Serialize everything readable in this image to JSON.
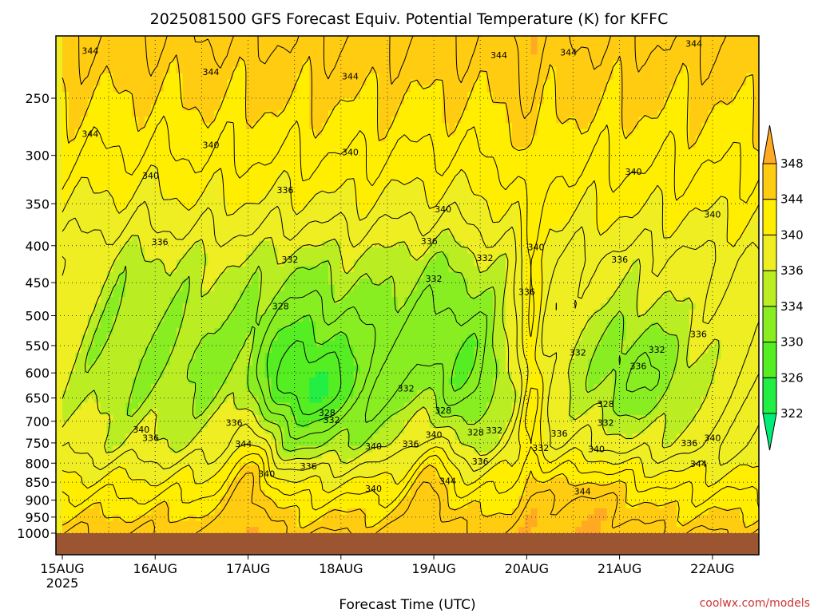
{
  "title": "2025081500 GFS Forecast Equiv. Potential Temperature (K) for KFFC",
  "credit": "coolwx.com/models",
  "chart_data": {
    "type": "contour",
    "title": "2025081500 GFS Forecast Equiv. Potential Temperature (K) for KFFC",
    "xlabel": "Forecast Time (UTC)",
    "ylabel": "",
    "y_axis_reversed": true,
    "ylim": [
      205,
      1000
    ],
    "y_ticks": [
      250,
      300,
      350,
      400,
      450,
      500,
      550,
      600,
      650,
      700,
      750,
      800,
      850,
      900,
      950,
      1000
    ],
    "x_ticks": [
      {
        "label": "15AUG",
        "sub": "2025",
        "day": 0
      },
      {
        "label": "16AUG",
        "sub": "",
        "day": 1
      },
      {
        "label": "17AUG",
        "sub": "",
        "day": 2
      },
      {
        "label": "18AUG",
        "sub": "",
        "day": 3
      },
      {
        "label": "19AUG",
        "sub": "",
        "day": 4
      },
      {
        "label": "20AUG",
        "sub": "",
        "day": 5
      },
      {
        "label": "21AUG",
        "sub": "",
        "day": 6
      },
      {
        "label": "22AUG",
        "sub": "",
        "day": 7
      }
    ],
    "xlim_days": [
      0,
      7.5
    ],
    "grid": true,
    "colorbar": {
      "levels": [
        322,
        326,
        330,
        334,
        336,
        340,
        344,
        348
      ],
      "colors": [
        "#00ee77",
        "#22ee44",
        "#55ee22",
        "#88ee22",
        "#bbee22",
        "#eeee22",
        "#ffee00",
        "#ffcc11",
        "#ffaa22"
      ]
    },
    "contour_labels": [
      {
        "t": 0.3,
        "p": 215,
        "v": "344"
      },
      {
        "t": 1.6,
        "p": 230,
        "v": "344"
      },
      {
        "t": 3.1,
        "p": 233,
        "v": "344"
      },
      {
        "t": 4.7,
        "p": 218,
        "v": "344"
      },
      {
        "t": 5.45,
        "p": 216,
        "v": "344"
      },
      {
        "t": 6.8,
        "p": 210,
        "v": "344"
      },
      {
        "t": 0.3,
        "p": 280,
        "v": "344"
      },
      {
        "t": 1.6,
        "p": 290,
        "v": "340"
      },
      {
        "t": 3.1,
        "p": 297,
        "v": "340"
      },
      {
        "t": 0.95,
        "p": 320,
        "v": "340"
      },
      {
        "t": 2.4,
        "p": 335,
        "v": "336"
      },
      {
        "t": 6.15,
        "p": 316,
        "v": "340"
      },
      {
        "t": 7.0,
        "p": 362,
        "v": "340"
      },
      {
        "t": 4.1,
        "p": 356,
        "v": "340"
      },
      {
        "t": 1.05,
        "p": 395,
        "v": "336"
      },
      {
        "t": 2.45,
        "p": 418,
        "v": "332"
      },
      {
        "t": 3.95,
        "p": 394,
        "v": "336"
      },
      {
        "t": 4.55,
        "p": 416,
        "v": "332"
      },
      {
        "t": 5.1,
        "p": 402,
        "v": "340"
      },
      {
        "t": 6.0,
        "p": 418,
        "v": "336"
      },
      {
        "t": 4.0,
        "p": 444,
        "v": "332"
      },
      {
        "t": 5.0,
        "p": 463,
        "v": "336"
      },
      {
        "t": 2.35,
        "p": 485,
        "v": "328"
      },
      {
        "t": 6.85,
        "p": 530,
        "v": "336"
      },
      {
        "t": 5.55,
        "p": 562,
        "v": "332"
      },
      {
        "t": 6.4,
        "p": 557,
        "v": "332"
      },
      {
        "t": 6.2,
        "p": 587,
        "v": "336"
      },
      {
        "t": 3.7,
        "p": 630,
        "v": "332"
      },
      {
        "t": 5.85,
        "p": 662,
        "v": "328"
      },
      {
        "t": 2.85,
        "p": 681,
        "v": "328"
      },
      {
        "t": 4.1,
        "p": 676,
        "v": "328"
      },
      {
        "t": 2.9,
        "p": 697,
        "v": "332"
      },
      {
        "t": 1.85,
        "p": 703,
        "v": "336"
      },
      {
        "t": 5.85,
        "p": 703,
        "v": "332"
      },
      {
        "t": 0.85,
        "p": 718,
        "v": "340"
      },
      {
        "t": 4.0,
        "p": 730,
        "v": "340"
      },
      {
        "t": 4.45,
        "p": 725,
        "v": "328"
      },
      {
        "t": 4.65,
        "p": 720,
        "v": "332"
      },
      {
        "t": 5.35,
        "p": 728,
        "v": "336"
      },
      {
        "t": 0.95,
        "p": 738,
        "v": "336"
      },
      {
        "t": 1.95,
        "p": 752,
        "v": "344"
      },
      {
        "t": 3.75,
        "p": 752,
        "v": "336"
      },
      {
        "t": 3.35,
        "p": 758,
        "v": "340"
      },
      {
        "t": 7.0,
        "p": 738,
        "v": "340"
      },
      {
        "t": 6.75,
        "p": 750,
        "v": "336"
      },
      {
        "t": 5.15,
        "p": 762,
        "v": "332"
      },
      {
        "t": 5.75,
        "p": 765,
        "v": "340"
      },
      {
        "t": 2.65,
        "p": 808,
        "v": "336"
      },
      {
        "t": 4.5,
        "p": 795,
        "v": "336"
      },
      {
        "t": 6.85,
        "p": 801,
        "v": "344"
      },
      {
        "t": 2.2,
        "p": 827,
        "v": "340"
      },
      {
        "t": 3.35,
        "p": 867,
        "v": "340"
      },
      {
        "t": 4.15,
        "p": 847,
        "v": "344"
      },
      {
        "t": 5.6,
        "p": 875,
        "v": "344"
      }
    ]
  }
}
